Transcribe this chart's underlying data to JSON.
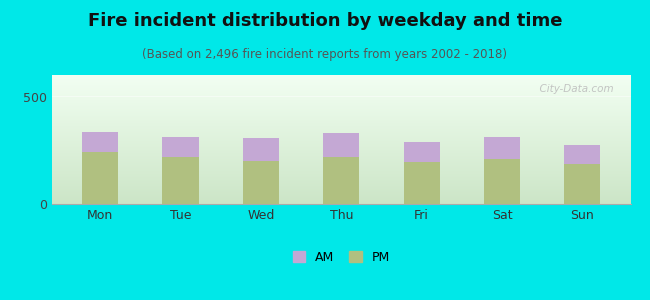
{
  "title": "Fire incident distribution by weekday and time",
  "subtitle": "(Based on 2,496 fire incident reports from years 2002 - 2018)",
  "categories": [
    "Mon",
    "Tue",
    "Wed",
    "Thu",
    "Fri",
    "Sat",
    "Sun"
  ],
  "am_values": [
    95,
    90,
    105,
    110,
    95,
    100,
    88
  ],
  "pm_values": [
    240,
    220,
    200,
    220,
    195,
    210,
    185
  ],
  "am_color": "#c4a8d4",
  "pm_color": "#b0c080",
  "background_color": "#00e8e8",
  "ylim": [
    0,
    600
  ],
  "yticks": [
    0,
    500
  ],
  "bar_width": 0.45,
  "watermark": "City-Data.com",
  "title_fontsize": 13,
  "subtitle_fontsize": 8.5,
  "tick_fontsize": 9,
  "legend_fontsize": 9
}
